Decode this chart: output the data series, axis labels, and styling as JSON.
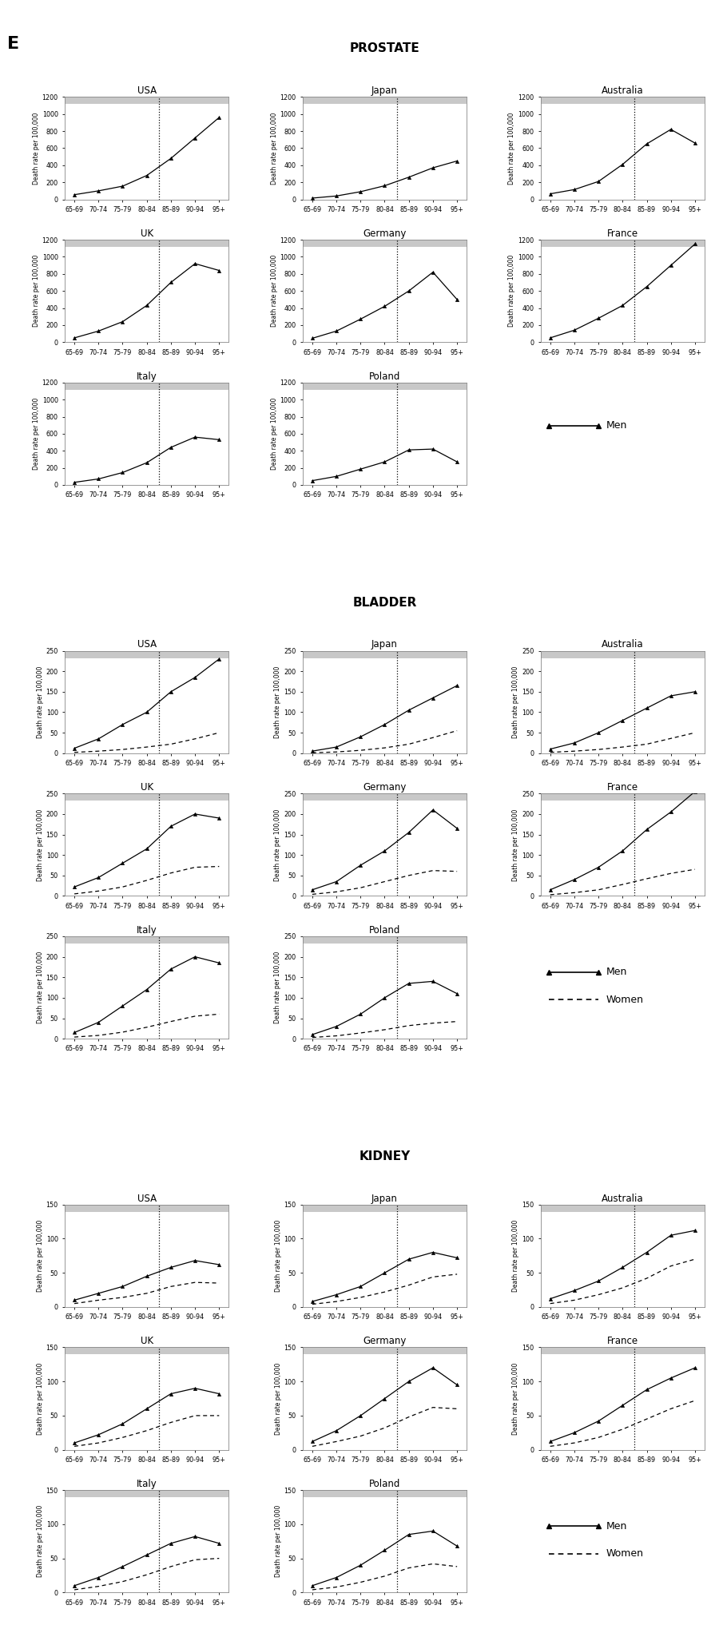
{
  "age_groups": [
    "65-69",
    "70-74",
    "75-79",
    "80-84",
    "85-89",
    "90-94",
    "95+"
  ],
  "prostate": {
    "USA": {
      "men": [
        55,
        100,
        155,
        280,
        480,
        720,
        960
      ]
    },
    "Japan": {
      "men": [
        15,
        40,
        90,
        160,
        260,
        370,
        450
      ]
    },
    "Australia": {
      "men": [
        65,
        115,
        210,
        410,
        650,
        820,
        660
      ]
    },
    "UK": {
      "men": [
        50,
        130,
        240,
        430,
        700,
        920,
        840
      ]
    },
    "Germany": {
      "men": [
        45,
        130,
        270,
        420,
        600,
        820,
        500
      ]
    },
    "France": {
      "men": [
        50,
        140,
        280,
        430,
        650,
        900,
        1150
      ]
    },
    "Italy": {
      "men": [
        30,
        70,
        145,
        260,
        440,
        560,
        530
      ]
    },
    "Poland": {
      "men": [
        50,
        100,
        185,
        270,
        410,
        420,
        270
      ]
    }
  },
  "bladder": {
    "USA": {
      "men": [
        12,
        35,
        70,
        100,
        150,
        185,
        230
      ],
      "women": [
        2,
        5,
        9,
        15,
        22,
        35,
        50
      ]
    },
    "Japan": {
      "men": [
        5,
        15,
        40,
        70,
        105,
        135,
        165
      ],
      "women": [
        1,
        3,
        7,
        13,
        22,
        38,
        55
      ]
    },
    "Australia": {
      "men": [
        10,
        25,
        50,
        80,
        110,
        140,
        150
      ],
      "women": [
        2,
        5,
        9,
        15,
        22,
        36,
        50
      ]
    },
    "UK": {
      "men": [
        22,
        45,
        80,
        115,
        170,
        200,
        190
      ],
      "women": [
        5,
        12,
        22,
        38,
        56,
        70,
        72
      ]
    },
    "Germany": {
      "men": [
        15,
        35,
        75,
        110,
        155,
        210,
        165
      ],
      "women": [
        4,
        10,
        20,
        35,
        50,
        62,
        60
      ]
    },
    "France": {
      "men": [
        15,
        40,
        70,
        110,
        162,
        205,
        255
      ],
      "women": [
        3,
        8,
        15,
        28,
        42,
        55,
        65
      ]
    },
    "Italy": {
      "men": [
        15,
        40,
        80,
        120,
        170,
        200,
        185
      ],
      "women": [
        4,
        8,
        16,
        28,
        42,
        55,
        60
      ]
    },
    "Poland": {
      "men": [
        10,
        30,
        60,
        100,
        135,
        140,
        110
      ],
      "women": [
        3,
        7,
        14,
        22,
        32,
        38,
        42
      ]
    }
  },
  "kidney": {
    "USA": {
      "men": [
        10,
        20,
        30,
        45,
        58,
        68,
        62
      ],
      "women": [
        5,
        10,
        14,
        20,
        30,
        36,
        35
      ]
    },
    "Japan": {
      "men": [
        8,
        18,
        30,
        50,
        70,
        80,
        72
      ],
      "women": [
        4,
        8,
        14,
        22,
        32,
        44,
        48
      ]
    },
    "Australia": {
      "men": [
        12,
        24,
        38,
        58,
        80,
        105,
        112
      ],
      "women": [
        5,
        10,
        18,
        28,
        42,
        60,
        70
      ]
    },
    "UK": {
      "men": [
        10,
        22,
        38,
        60,
        82,
        90,
        82
      ],
      "women": [
        5,
        10,
        18,
        28,
        40,
        50,
        50
      ]
    },
    "Germany": {
      "men": [
        12,
        28,
        50,
        75,
        100,
        120,
        95
      ],
      "women": [
        5,
        12,
        20,
        32,
        48,
        62,
        60
      ]
    },
    "France": {
      "men": [
        12,
        25,
        42,
        65,
        88,
        105,
        120
      ],
      "women": [
        5,
        10,
        18,
        30,
        45,
        60,
        72
      ]
    },
    "Italy": {
      "men": [
        10,
        22,
        38,
        55,
        72,
        82,
        72
      ],
      "women": [
        4,
        9,
        16,
        26,
        38,
        48,
        50
      ]
    },
    "Poland": {
      "men": [
        10,
        22,
        40,
        62,
        85,
        90,
        68
      ],
      "women": [
        4,
        8,
        15,
        24,
        36,
        42,
        38
      ]
    }
  },
  "prostate_ylim": [
    0,
    1200
  ],
  "prostate_yticks": [
    0,
    200,
    400,
    600,
    800,
    1000,
    1200
  ],
  "bladder_ylim": [
    0,
    250
  ],
  "bladder_yticks": [
    0,
    50,
    100,
    150,
    200,
    250
  ],
  "kidney_ylim": [
    0,
    150
  ],
  "kidney_yticks": [
    0,
    50,
    100,
    150
  ],
  "panel_bg": "#ffffff",
  "top_bar_color": "#c8c8c8",
  "border_color": "#888888"
}
